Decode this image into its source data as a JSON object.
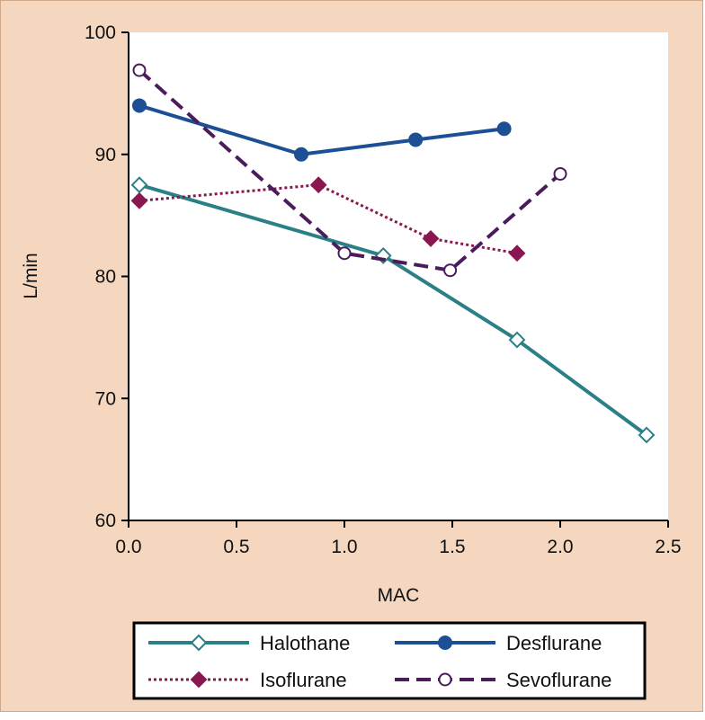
{
  "chart_data": {
    "type": "line",
    "title": "",
    "xlabel": "MAC",
    "ylabel": "L/min",
    "xlim": [
      0,
      2.5
    ],
    "ylim": [
      60,
      100
    ],
    "xticks": [
      "0.0",
      "0.5",
      "1.0",
      "1.5",
      "2.0",
      "2.5"
    ],
    "yticks": [
      "60",
      "70",
      "80",
      "90",
      "100"
    ],
    "grid": false,
    "legend_position": "bottom",
    "series": [
      {
        "name": "Halothane",
        "color": "#2b7f86",
        "line_style": "solid",
        "marker": "open-diamond",
        "x": [
          0.05,
          1.18,
          1.8,
          2.4
        ],
        "y": [
          87.5,
          81.7,
          74.8,
          67.0
        ]
      },
      {
        "name": "Desflurane",
        "color": "#1c4f94",
        "line_style": "solid",
        "marker": "filled-circle",
        "x": [
          0.05,
          0.8,
          1.33,
          1.74
        ],
        "y": [
          94.0,
          90.0,
          91.2,
          92.1
        ]
      },
      {
        "name": "Isoflurane",
        "color": "#8a1750",
        "line_style": "dotted",
        "marker": "filled-diamond",
        "x": [
          0.05,
          0.88,
          1.4,
          1.8
        ],
        "y": [
          86.2,
          87.5,
          83.1,
          81.9
        ]
      },
      {
        "name": "Sevoflurane",
        "color": "#4a1c5c",
        "line_style": "dashed",
        "marker": "open-circle",
        "x": [
          0.05,
          1.0,
          1.49,
          2.0
        ],
        "y": [
          96.9,
          81.9,
          80.5,
          88.4
        ]
      }
    ]
  }
}
